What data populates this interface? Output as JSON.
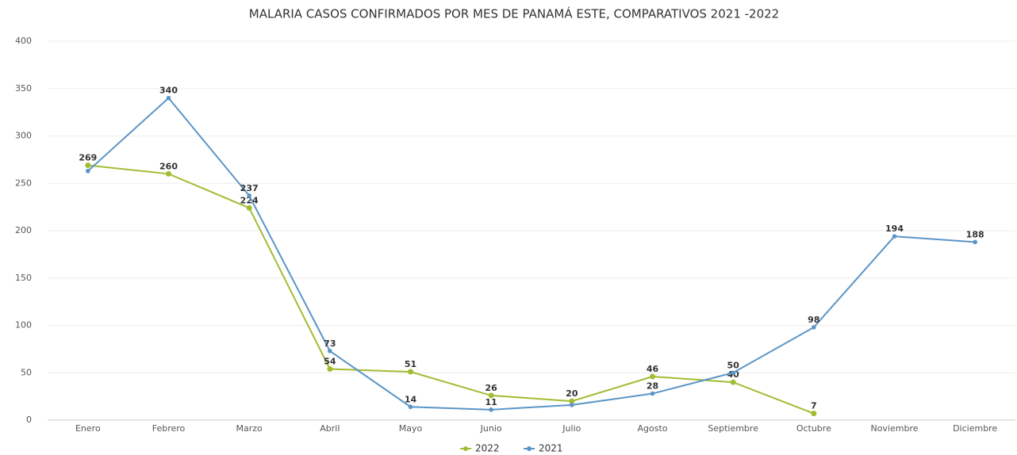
{
  "chart_data": {
    "type": "line",
    "title": "MALARIA CASOS CONFIRMADOS POR MES DE PANAMÁ ESTE, COMPARATIVOS 2021 -2022",
    "categories": [
      "Enero",
      "Febrero",
      "Marzo",
      "Abril",
      "Mayo",
      "Junio",
      "Julio",
      "Agosto",
      "Septiembre",
      "Octubre",
      "Noviembre",
      "Diciembre"
    ],
    "series": [
      {
        "name": "2022",
        "color": "#a0bd32",
        "values": [
          269,
          260,
          224,
          54,
          51,
          26,
          20,
          46,
          40,
          7,
          null,
          null
        ]
      },
      {
        "name": "2021",
        "color": "#5b95c6",
        "values": [
          263,
          340,
          237,
          73,
          14,
          11,
          16,
          28,
          50,
          98,
          194,
          188
        ],
        "value_labels": [
          null,
          "340",
          "237",
          "73",
          "14",
          "11",
          null,
          "28",
          "50",
          "98",
          "194",
          "188"
        ]
      }
    ],
    "ylim": [
      0,
      400
    ],
    "yticks": [
      0,
      50,
      100,
      150,
      200,
      250,
      300,
      350,
      400
    ],
    "grid": true,
    "legend": "bottom"
  }
}
